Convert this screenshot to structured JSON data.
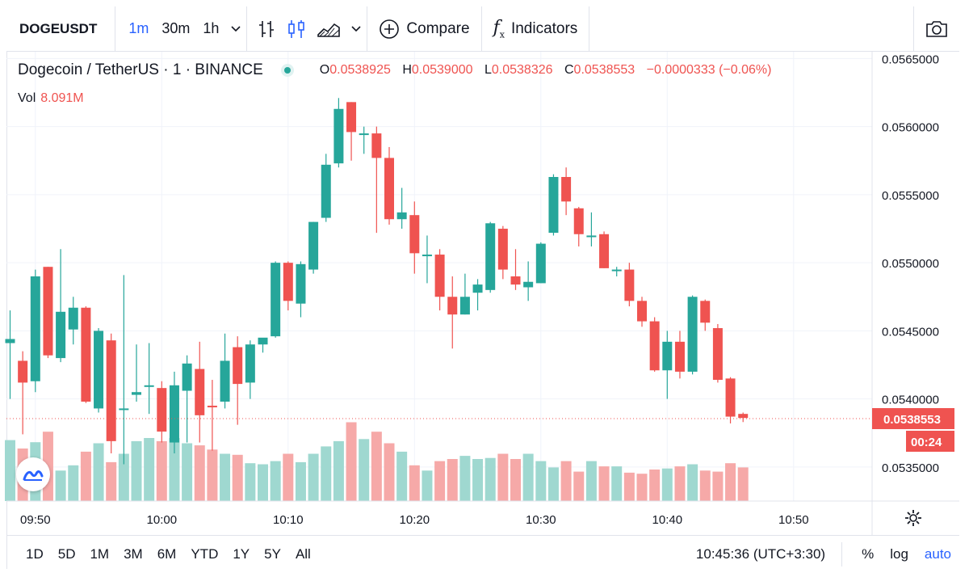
{
  "toolbar": {
    "symbol": "DOGEUSDT",
    "timeframes": [
      "1m",
      "30m",
      "1h"
    ],
    "active_timeframe": "1m",
    "compare_label": "Compare",
    "indicators_label": "Indicators"
  },
  "legend": {
    "title": "Dogecoin / TetherUS · 1 · BINANCE",
    "o_key": "O",
    "o_val": "0.0538925",
    "h_key": "H",
    "h_val": "0.0539000",
    "l_key": "L",
    "l_val": "0.0538326",
    "c_key": "C",
    "c_val": "0.0538553",
    "change": "−0.0000333 (−0.06%)",
    "vol_key": "Vol",
    "vol_val": "8.091M"
  },
  "price_tag": {
    "price": "0.0538553",
    "countdown": "00:24"
  },
  "colors": {
    "up": "#26a69a",
    "down": "#ef5350",
    "up_vol": "#9fd8d0",
    "down_vol": "#f6a9a8",
    "accent": "#2962ff"
  },
  "bottombar": {
    "ranges": [
      "1D",
      "5D",
      "1M",
      "3M",
      "6M",
      "YTD",
      "1Y",
      "5Y",
      "All"
    ],
    "clock": "10:45:36 (UTC+3:30)",
    "percent_label": "%",
    "log_label": "log",
    "auto_label": "auto"
  },
  "chart_data": {
    "type": "candlestick",
    "x_start_minute_label": "09:48",
    "ylim": [
      0.05325,
      0.05655
    ],
    "y_ticks": [
      "0.0565000",
      "0.0560000",
      "0.0555000",
      "0.0550000",
      "0.0545000",
      "0.0540000",
      "0.0535000"
    ],
    "x_ticks": [
      "09:50",
      "10:00",
      "10:10",
      "10:20",
      "10:30",
      "10:40",
      "10:50"
    ],
    "x_tick_minutes": [
      2,
      12,
      22,
      32,
      42,
      52,
      62
    ],
    "last_price": 0.0538553,
    "candles": [
      {
        "o": 0.05441,
        "h": 0.05465,
        "l": 0.054,
        "c": 0.05444
      },
      {
        "o": 0.05428,
        "h": 0.05435,
        "l": 0.05374,
        "c": 0.05412
      },
      {
        "o": 0.05413,
        "h": 0.05495,
        "l": 0.05405,
        "c": 0.0549
      },
      {
        "o": 0.05497,
        "h": 0.05497,
        "l": 0.0543,
        "c": 0.05432
      },
      {
        "o": 0.0543,
        "h": 0.0551,
        "l": 0.05427,
        "c": 0.05464
      },
      {
        "o": 0.05451,
        "h": 0.05475,
        "l": 0.0544,
        "c": 0.05467
      },
      {
        "o": 0.05467,
        "h": 0.05468,
        "l": 0.05397,
        "c": 0.05398
      },
      {
        "o": 0.05393,
        "h": 0.05452,
        "l": 0.0539,
        "c": 0.0545
      },
      {
        "o": 0.05443,
        "h": 0.05448,
        "l": 0.0536,
        "c": 0.05369
      },
      {
        "o": 0.05393,
        "h": 0.05491,
        "l": 0.05352,
        "c": 0.05393
      },
      {
        "o": 0.05403,
        "h": 0.0544,
        "l": 0.05398,
        "c": 0.05405
      },
      {
        "o": 0.05409,
        "h": 0.05441,
        "l": 0.05389,
        "c": 0.0541
      },
      {
        "o": 0.05408,
        "h": 0.05413,
        "l": 0.05368,
        "c": 0.05376
      },
      {
        "o": 0.05368,
        "h": 0.0542,
        "l": 0.0536,
        "c": 0.0541
      },
      {
        "o": 0.05406,
        "h": 0.05432,
        "l": 0.05368,
        "c": 0.05426
      },
      {
        "o": 0.05422,
        "h": 0.05442,
        "l": 0.05368,
        "c": 0.05388
      },
      {
        "o": 0.05395,
        "h": 0.05414,
        "l": 0.05362,
        "c": 0.05394
      },
      {
        "o": 0.05398,
        "h": 0.05448,
        "l": 0.05393,
        "c": 0.05428
      },
      {
        "o": 0.05438,
        "h": 0.05446,
        "l": 0.05381,
        "c": 0.05411
      },
      {
        "o": 0.05412,
        "h": 0.05443,
        "l": 0.054,
        "c": 0.0544
      },
      {
        "o": 0.0544,
        "h": 0.05444,
        "l": 0.05434,
        "c": 0.05445
      },
      {
        "o": 0.05446,
        "h": 0.05501,
        "l": 0.05445,
        "c": 0.055
      },
      {
        "o": 0.055,
        "h": 0.05501,
        "l": 0.05465,
        "c": 0.05472
      },
      {
        "o": 0.0547,
        "h": 0.05501,
        "l": 0.0546,
        "c": 0.05499
      },
      {
        "o": 0.05495,
        "h": 0.0553,
        "l": 0.05492,
        "c": 0.0553
      },
      {
        "o": 0.05533,
        "h": 0.0558,
        "l": 0.0553,
        "c": 0.05572
      },
      {
        "o": 0.05573,
        "h": 0.05621,
        "l": 0.0557,
        "c": 0.05613
      },
      {
        "o": 0.05618,
        "h": 0.05618,
        "l": 0.05575,
        "c": 0.05596
      },
      {
        "o": 0.05595,
        "h": 0.056,
        "l": 0.0558,
        "c": 0.05595
      },
      {
        "o": 0.05595,
        "h": 0.056,
        "l": 0.05522,
        "c": 0.05577
      },
      {
        "o": 0.05577,
        "h": 0.05585,
        "l": 0.05528,
        "c": 0.05532
      },
      {
        "o": 0.05532,
        "h": 0.05555,
        "l": 0.05525,
        "c": 0.05537
      },
      {
        "o": 0.05535,
        "h": 0.05545,
        "l": 0.05492,
        "c": 0.05507
      },
      {
        "o": 0.05506,
        "h": 0.0552,
        "l": 0.05485,
        "c": 0.05506
      },
      {
        "o": 0.05506,
        "h": 0.0551,
        "l": 0.05465,
        "c": 0.05475
      },
      {
        "o": 0.05475,
        "h": 0.0549,
        "l": 0.05437,
        "c": 0.05462
      },
      {
        "o": 0.05462,
        "h": 0.05492,
        "l": 0.05462,
        "c": 0.05475
      },
      {
        "o": 0.05478,
        "h": 0.05488,
        "l": 0.05465,
        "c": 0.05484
      },
      {
        "o": 0.0548,
        "h": 0.0553,
        "l": 0.05478,
        "c": 0.05529
      },
      {
        "o": 0.05525,
        "h": 0.05527,
        "l": 0.05488,
        "c": 0.05495
      },
      {
        "o": 0.0549,
        "h": 0.0551,
        "l": 0.0548,
        "c": 0.05484
      },
      {
        "o": 0.05482,
        "h": 0.05501,
        "l": 0.05472,
        "c": 0.05486
      },
      {
        "o": 0.05485,
        "h": 0.05515,
        "l": 0.05485,
        "c": 0.05514
      },
      {
        "o": 0.05522,
        "h": 0.05565,
        "l": 0.0552,
        "c": 0.05563
      },
      {
        "o": 0.05563,
        "h": 0.0557,
        "l": 0.05535,
        "c": 0.05545
      },
      {
        "o": 0.0554,
        "h": 0.05541,
        "l": 0.05512,
        "c": 0.05521
      },
      {
        "o": 0.0552,
        "h": 0.05537,
        "l": 0.05512,
        "c": 0.0552
      },
      {
        "o": 0.05521,
        "h": 0.05523,
        "l": 0.05496,
        "c": 0.05496
      },
      {
        "o": 0.05494,
        "h": 0.05497,
        "l": 0.0549,
        "c": 0.05495
      },
      {
        "o": 0.05495,
        "h": 0.055,
        "l": 0.05468,
        "c": 0.05472
      },
      {
        "o": 0.05472,
        "h": 0.05475,
        "l": 0.05453,
        "c": 0.05457
      },
      {
        "o": 0.05457,
        "h": 0.0546,
        "l": 0.0542,
        "c": 0.05421
      },
      {
        "o": 0.05421,
        "h": 0.0545,
        "l": 0.054,
        "c": 0.05442
      },
      {
        "o": 0.05442,
        "h": 0.0545,
        "l": 0.05415,
        "c": 0.0542
      },
      {
        "o": 0.0542,
        "h": 0.05476,
        "l": 0.05418,
        "c": 0.05475
      },
      {
        "o": 0.05472,
        "h": 0.05473,
        "l": 0.0545,
        "c": 0.05456
      },
      {
        "o": 0.05452,
        "h": 0.05455,
        "l": 0.05412,
        "c": 0.05414
      },
      {
        "o": 0.05415,
        "h": 0.05416,
        "l": 0.05382,
        "c": 0.05387
      },
      {
        "o": 0.05389,
        "h": 0.0539,
        "l": 0.05383,
        "c": 0.05386
      }
    ],
    "volumes": [
      58,
      50,
      56,
      66,
      29,
      34,
      47,
      55,
      37,
      45,
      57,
      60,
      57,
      60,
      55,
      53,
      49,
      45,
      44,
      36,
      35,
      38,
      45,
      37,
      45,
      52,
      57,
      75,
      59,
      66,
      55,
      47,
      34,
      29,
      38,
      40,
      43,
      40,
      41,
      45,
      40,
      45,
      38,
      32,
      38,
      28,
      38,
      33,
      33,
      27,
      26,
      30,
      31,
      33,
      35,
      29,
      28,
      36,
      32
    ]
  }
}
